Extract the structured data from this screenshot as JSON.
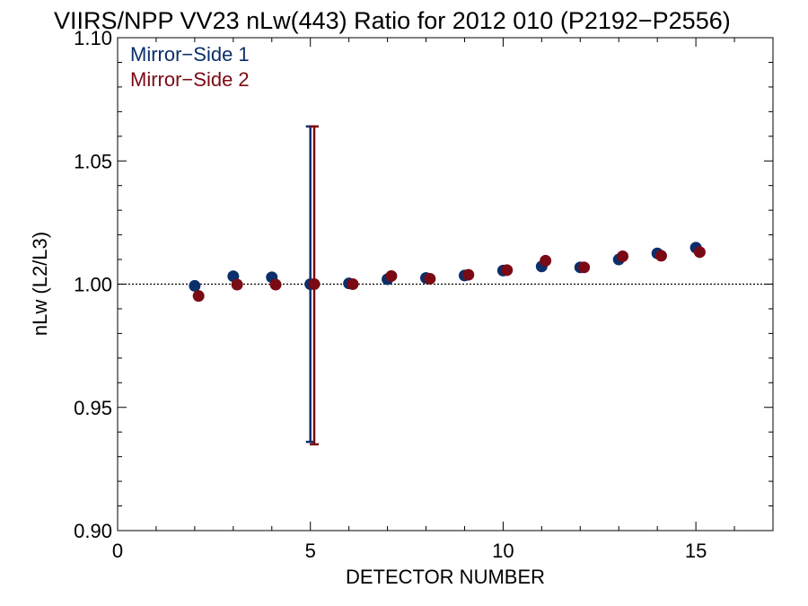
{
  "chart_data": {
    "type": "scatter",
    "title": "VIIRS/NPP VV23 nLw(443) Ratio for 2012 010 (P2192−P2556)",
    "xlabel": "DETECTOR NUMBER",
    "ylabel": "nLw (L2/L3)",
    "xlim": [
      0,
      17
    ],
    "ylim": [
      0.9,
      1.1
    ],
    "x_ticks": [
      0,
      5,
      10,
      15
    ],
    "x_tick_labels": [
      "0",
      "5",
      "10",
      "15"
    ],
    "y_ticks": [
      0.9,
      0.95,
      1.0,
      1.05,
      1.1
    ],
    "y_tick_labels": [
      "0.90",
      "0.95",
      "1.00",
      "1.05",
      "1.10"
    ],
    "reference_line": 1.0,
    "legend_position": "top-left",
    "series": [
      {
        "name": "Mirror−Side 1",
        "color": "#0b2f6b",
        "x": [
          2,
          3,
          4,
          5,
          6,
          7,
          8,
          9,
          10,
          11,
          12,
          13,
          14,
          15
        ],
        "y": [
          0.9993,
          1.0032,
          1.0028,
          1.0,
          1.0003,
          1.002,
          1.0025,
          1.0035,
          1.0055,
          1.0072,
          1.0068,
          1.01,
          1.0125,
          1.0148
        ],
        "error_bars": [
          {
            "x": 5,
            "low": 0.936,
            "high": 1.064
          }
        ]
      },
      {
        "name": "Mirror−Side 2",
        "color": "#7a0a14",
        "x": [
          2.1,
          3.1,
          4.1,
          5.1,
          6.1,
          7.1,
          8.1,
          9.1,
          10.1,
          11.1,
          12.1,
          13.1,
          14.1,
          15.1
        ],
        "y": [
          0.9952,
          0.9998,
          0.9998,
          1.0,
          1.0,
          1.0033,
          1.0022,
          1.0038,
          1.0057,
          1.0095,
          1.0068,
          1.0113,
          1.0115,
          1.013
        ],
        "error_bars": [
          {
            "x": 5.1,
            "low": 0.935,
            "high": 1.064
          }
        ]
      }
    ]
  }
}
